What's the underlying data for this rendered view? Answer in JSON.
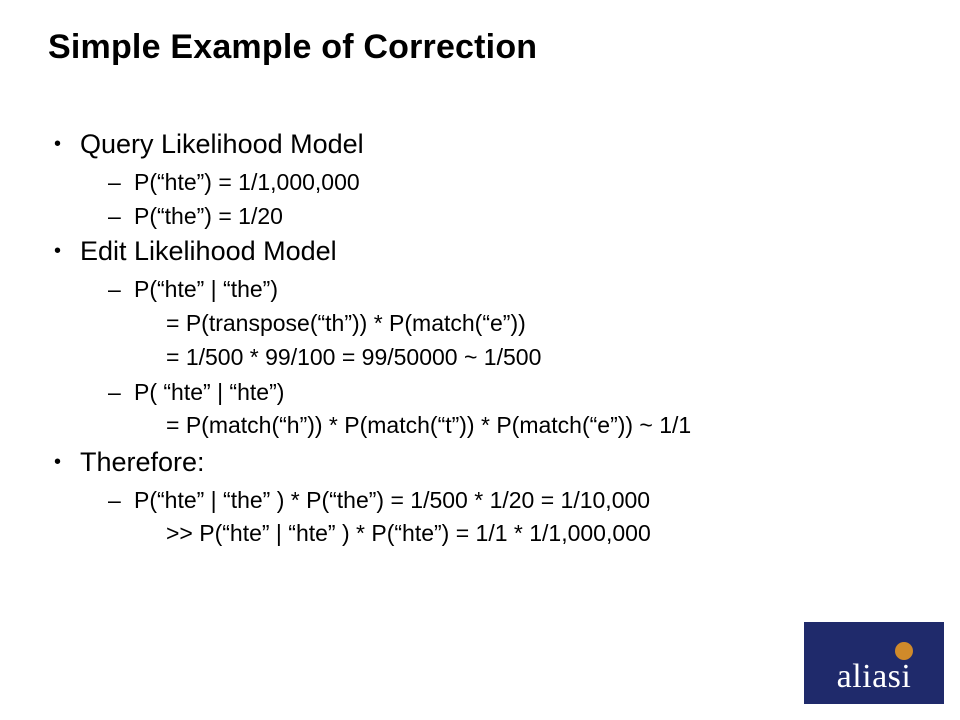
{
  "title": "Simple Example of Correction",
  "sections": [
    {
      "heading": "Query Likelihood Model",
      "level2": [
        {
          "text": "P(“hte”) = 1/1,000,000",
          "sub": []
        },
        {
          "text": "P(“the”) = 1/20",
          "sub": []
        }
      ]
    },
    {
      "heading": "Edit Likelihood Model",
      "level2": [
        {
          "text": "P(“hte” | “the”)",
          "sub": [
            "= P(transpose(“th”)) * P(match(“e”))",
            "= 1/500 * 99/100 = 99/50000 ~ 1/500"
          ]
        },
        {
          "text": "P( “hte” | “hte”)",
          "sub": [
            "= P(match(“h”)) * P(match(“t”)) * P(match(“e”)) ~ 1/1"
          ]
        }
      ]
    },
    {
      "heading": "Therefore:",
      "level2": [
        {
          "text": "P(“hte” | “the” ) * P(“the”) = 1/500 * 1/20 = 1/10,000",
          "sub": [
            ">>  P(“hte” | “hte” ) * P(“hte”) = 1/1 * 1/1,000,000"
          ]
        }
      ]
    }
  ],
  "logo": {
    "text_prefix": "alias",
    "text_suffix": "i",
    "background": "#1f2a6b",
    "dot_color": "#d08a2a",
    "text_color": "#ffffff"
  },
  "colors": {
    "background": "#ffffff",
    "text": "#000000"
  }
}
